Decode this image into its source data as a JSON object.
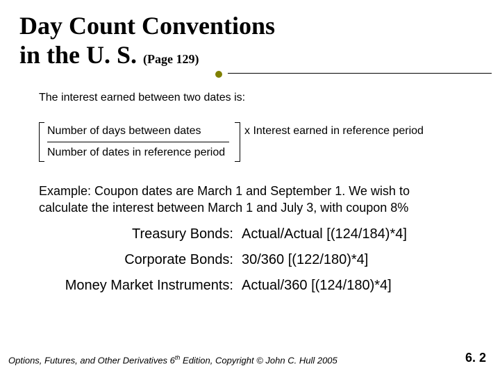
{
  "title": {
    "line1": "Day Count Conventions",
    "line2_main": "in the U. S.",
    "page_ref": "(Page 129)"
  },
  "intro": "The interest earned between two dates is:",
  "formula": {
    "numerator": "Number of days between dates",
    "denominator": "Number of dates in reference period",
    "multiplier": "x Interest earned in reference period"
  },
  "example": {
    "line1": "Example: Coupon dates are March 1 and September 1. We wish to",
    "line2": "calculate the interest between March 1 and July 3, with coupon 8%"
  },
  "calcs": [
    {
      "label": "Treasury Bonds:",
      "value": "Actual/Actual [(124/184)*4]"
    },
    {
      "label": "Corporate Bonds:",
      "value": "30/360 [(122/180)*4]"
    },
    {
      "label": "Money Market Instruments:",
      "value": "Actual/360 [(124/180)*4]"
    }
  ],
  "footer": {
    "book_prefix": "Options, Futures, and Other Derivatives 6",
    "ed": "th",
    "book_suffix": " Edition, Copyright © John C. Hull 2005",
    "page": "6. 2"
  },
  "colors": {
    "bullet": "#7f8000",
    "text": "#000000",
    "background": "#ffffff"
  }
}
